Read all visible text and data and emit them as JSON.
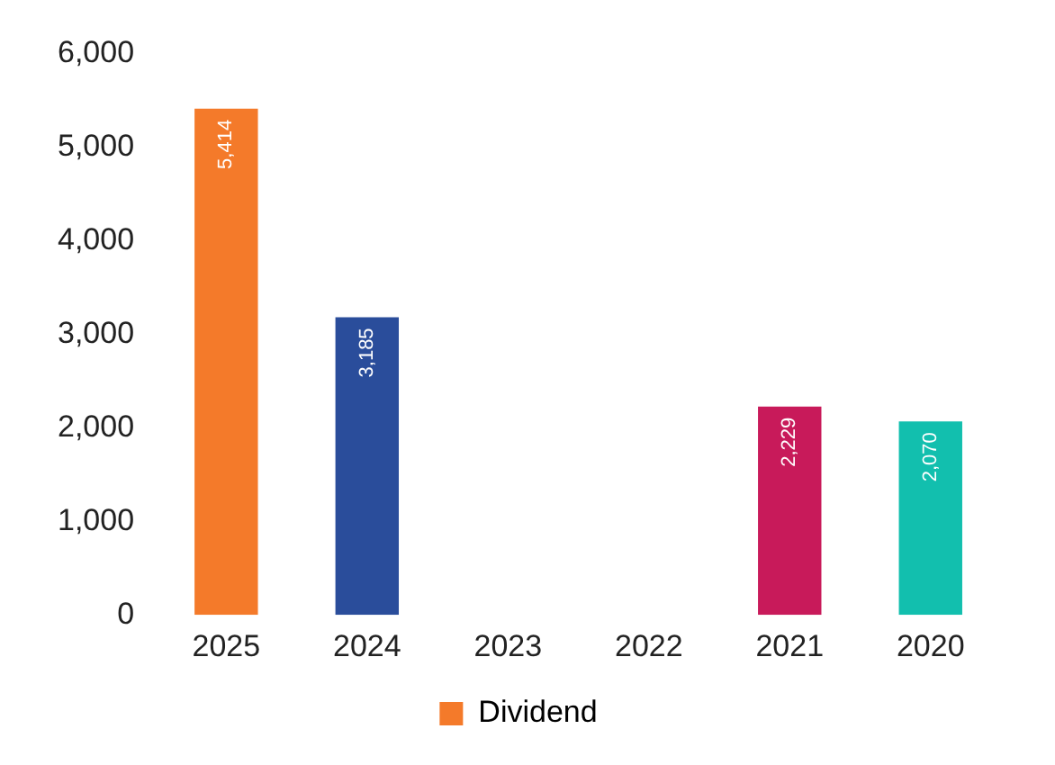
{
  "chart_data": {
    "type": "bar",
    "categories": [
      "2025",
      "2024",
      "2023",
      "2022",
      "2021",
      "2020"
    ],
    "series": [
      {
        "name": "Dividend",
        "color": "#f47a2a",
        "colors": [
          "#f47a2a",
          "#2a4d9b",
          "#f47a2a",
          "#f47a2a",
          "#c81a5a",
          "#12bfae"
        ],
        "values": [
          5414,
          3185,
          null,
          null,
          2229,
          2070
        ],
        "value_labels": [
          "5,414",
          "3,185",
          null,
          null,
          "2,229",
          "2,070"
        ]
      }
    ],
    "ylim": [
      0,
      6000
    ],
    "yticks": [
      {
        "value": 0,
        "label": "0"
      },
      {
        "value": 1000,
        "label": "1,000"
      },
      {
        "value": 2000,
        "label": "2,000"
      },
      {
        "value": 3000,
        "label": "3,000"
      },
      {
        "value": 4000,
        "label": "4,000"
      },
      {
        "value": 5000,
        "label": "5,000"
      },
      {
        "value": 6000,
        "label": "6,000"
      }
    ],
    "grid": false,
    "legend": "bottom"
  }
}
